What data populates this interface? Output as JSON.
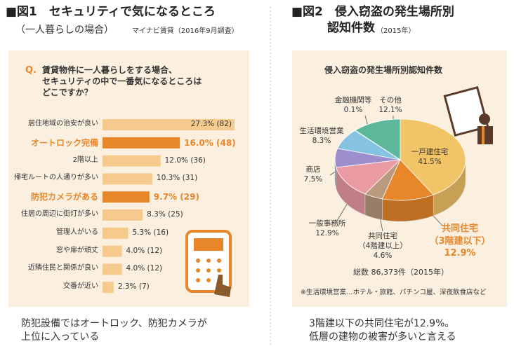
{
  "chart_data": [
    {
      "type": "bar",
      "title": "■図1　セキュリティで気になるところ",
      "subtitle": "（一人暮らしの場合）",
      "source": "マイナビ賃貸（2016年9月調査）",
      "question_mark": "Q.",
      "question": "賃貸物件に一人暮らしをする場合、\nセキュリティの中で一番気になるところは\nどこですか？",
      "categories": [
        "居住地域の治安が良い",
        "オートロック完備",
        "2階以上",
        "帰宅ルートの人通りが多い",
        "防犯カメラがある",
        "住居の周辺に街灯が多い",
        "管理人がいる",
        "窓や扉が頑丈",
        "近隣住民と関係が良い",
        "交番が近い"
      ],
      "values": [
        27.3,
        16.0,
        12.0,
        10.3,
        9.7,
        8.3,
        5.3,
        4.0,
        4.0,
        2.3
      ],
      "value_labels": [
        "27.3% (82)",
        "16.0% (48)",
        "12.0% (36)",
        "10.3% (31)",
        "9.7% (29)",
        "8.3% (25)",
        "5.3% (16)",
        "4.0% (12)",
        "4.0% (12)",
        "2.3% (7)"
      ],
      "color": "#f6c98c",
      "highlight_color": "#e8862a",
      "highlight": [
        1,
        4
      ],
      "caption": "防犯設備ではオートロック、防犯カメラが\n上位に入っている"
    },
    {
      "type": "pie",
      "title": "■図2　侵入窃盗の発生場所別\n　　　認知件数",
      "subtitle": "（2015年）",
      "inner_title": "侵入窃盗の発生場所別認知件数",
      "categories": [
        "一戸建住宅",
        "共同住宅\n（3階建以下）",
        "共同住宅\n（4階建以上）",
        "一般事務所",
        "商店",
        "生活環境営業",
        "金融機関等",
        "その他"
      ],
      "values": [
        41.5,
        12.9,
        4.6,
        12.9,
        7.5,
        8.3,
        0.1,
        12.1
      ],
      "value_labels": [
        "41.5%",
        "12.9%",
        "4.6%",
        "12.9%",
        "7.5%",
        "8.3%",
        "0.1%",
        "12.1%"
      ],
      "colors": [
        "#f2c468",
        "#e8862a",
        "#b99a7c",
        "#e99aa2",
        "#9c8fcb",
        "#86c3e3",
        "#6a9fd0",
        "#5db89b"
      ],
      "highlight": [
        1
      ],
      "total": "総数 86,373件（2015年）",
      "note": "※生活環境営業…ホテル・旅館、パチンコ屋、深夜飲食店など",
      "caption": "3階建以下の共同住宅が12.9%。\n低層の建物の被害が多いと言える"
    }
  ]
}
